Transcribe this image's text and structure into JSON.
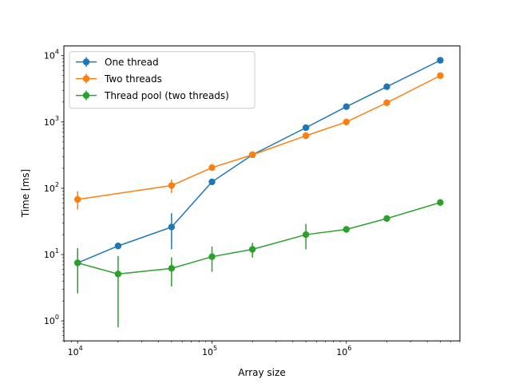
{
  "chart_data": {
    "type": "line",
    "title": "",
    "xlabel": "Array size",
    "ylabel": "Time [ms]",
    "x_scale": "log",
    "y_scale": "log",
    "xlim": [
      7900,
      7000000
    ],
    "ylim": [
      0.5,
      14000
    ],
    "x_ticks": [
      10000,
      100000,
      1000000
    ],
    "x_tick_labels": [
      "10^4",
      "10^5",
      "10^6"
    ],
    "y_ticks": [
      1,
      10,
      100,
      1000,
      10000
    ],
    "y_tick_labels": [
      "10^0",
      "10^1",
      "10^2",
      "10^3",
      "10^4"
    ],
    "grid": false,
    "legend_position": "top-left",
    "x": [
      10000,
      20000,
      50000,
      100000,
      200000,
      500000,
      1000000,
      2000000,
      5000000
    ],
    "series": [
      {
        "name": "One thread",
        "color": "#1f77b4",
        "values": [
          7.5,
          13.5,
          26,
          125,
          320,
          820,
          1700,
          3400,
          8500
        ],
        "err_low": [
          7.5,
          13.5,
          12,
          125,
          320,
          820,
          1700,
          3400,
          8500
        ],
        "err_high": [
          7.5,
          13.5,
          42,
          125,
          320,
          820,
          1700,
          3400,
          8500
        ]
      },
      {
        "name": "Two threads",
        "color": "#ff7f0e",
        "values": [
          null,
          null,
          110,
          205,
          320,
          620,
          1000,
          1950,
          5000
        ],
        "x_override": [
          10000,
          null,
          50000,
          100000,
          200000,
          500000,
          1000000,
          2000000,
          5000000
        ],
        "values_override": [
          68,
          null,
          110,
          205,
          320,
          620,
          1000,
          1950,
          5000
        ],
        "err_low": [
          48,
          null,
          85,
          205,
          320,
          620,
          1000,
          1950,
          5000
        ],
        "err_high": [
          90,
          null,
          135,
          205,
          320,
          620,
          1000,
          1950,
          5000
        ]
      },
      {
        "name": "Thread pool (two threads)",
        "color": "#2ca02c",
        "values": [
          7.5,
          5.1,
          6.2,
          9.3,
          12,
          20,
          24,
          35,
          61
        ],
        "err_low": [
          2.6,
          0.8,
          3.3,
          5.5,
          9,
          12,
          24,
          35,
          61
        ],
        "err_high": [
          12.5,
          9.5,
          9.1,
          13.2,
          15,
          29,
          24,
          35,
          61
        ]
      }
    ]
  }
}
